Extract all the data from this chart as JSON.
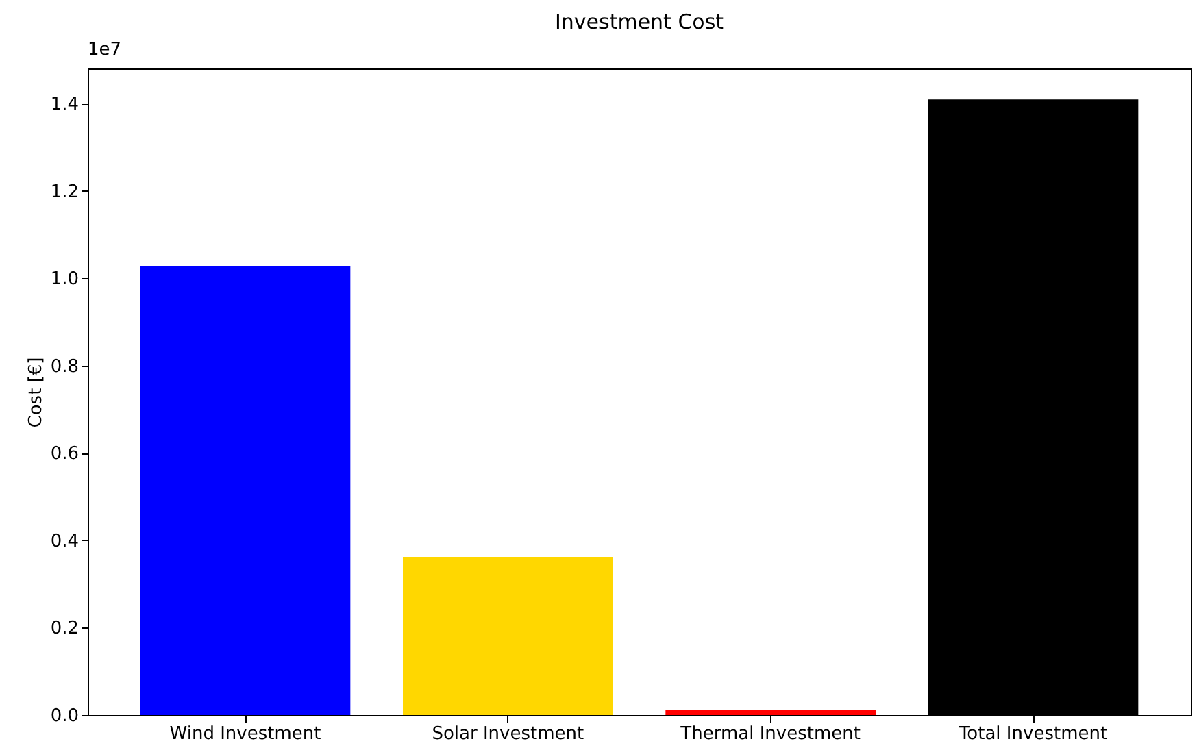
{
  "chart_data": {
    "type": "bar",
    "title": "Investment Cost",
    "ylabel": "Cost [€]",
    "categories": [
      "Wind Investment",
      "Solar Investment",
      "Thermal Investment",
      "Total Investment"
    ],
    "values": [
      1.027,
      0.361,
      0.012,
      1.409
    ],
    "colors": [
      "#0000ff",
      "#ffd700",
      "#ff0000",
      "#000000"
    ],
    "ylim": [
      0,
      1.48
    ],
    "yticks": [
      {
        "value": 0,
        "label": "0.0"
      },
      0.2,
      0.4,
      0.6,
      0.8,
      {
        "value": 1,
        "label": "1.0"
      },
      1.2,
      1.4
    ],
    "annotations": [
      "1e7"
    ],
    "grid": false,
    "legend": false
  }
}
